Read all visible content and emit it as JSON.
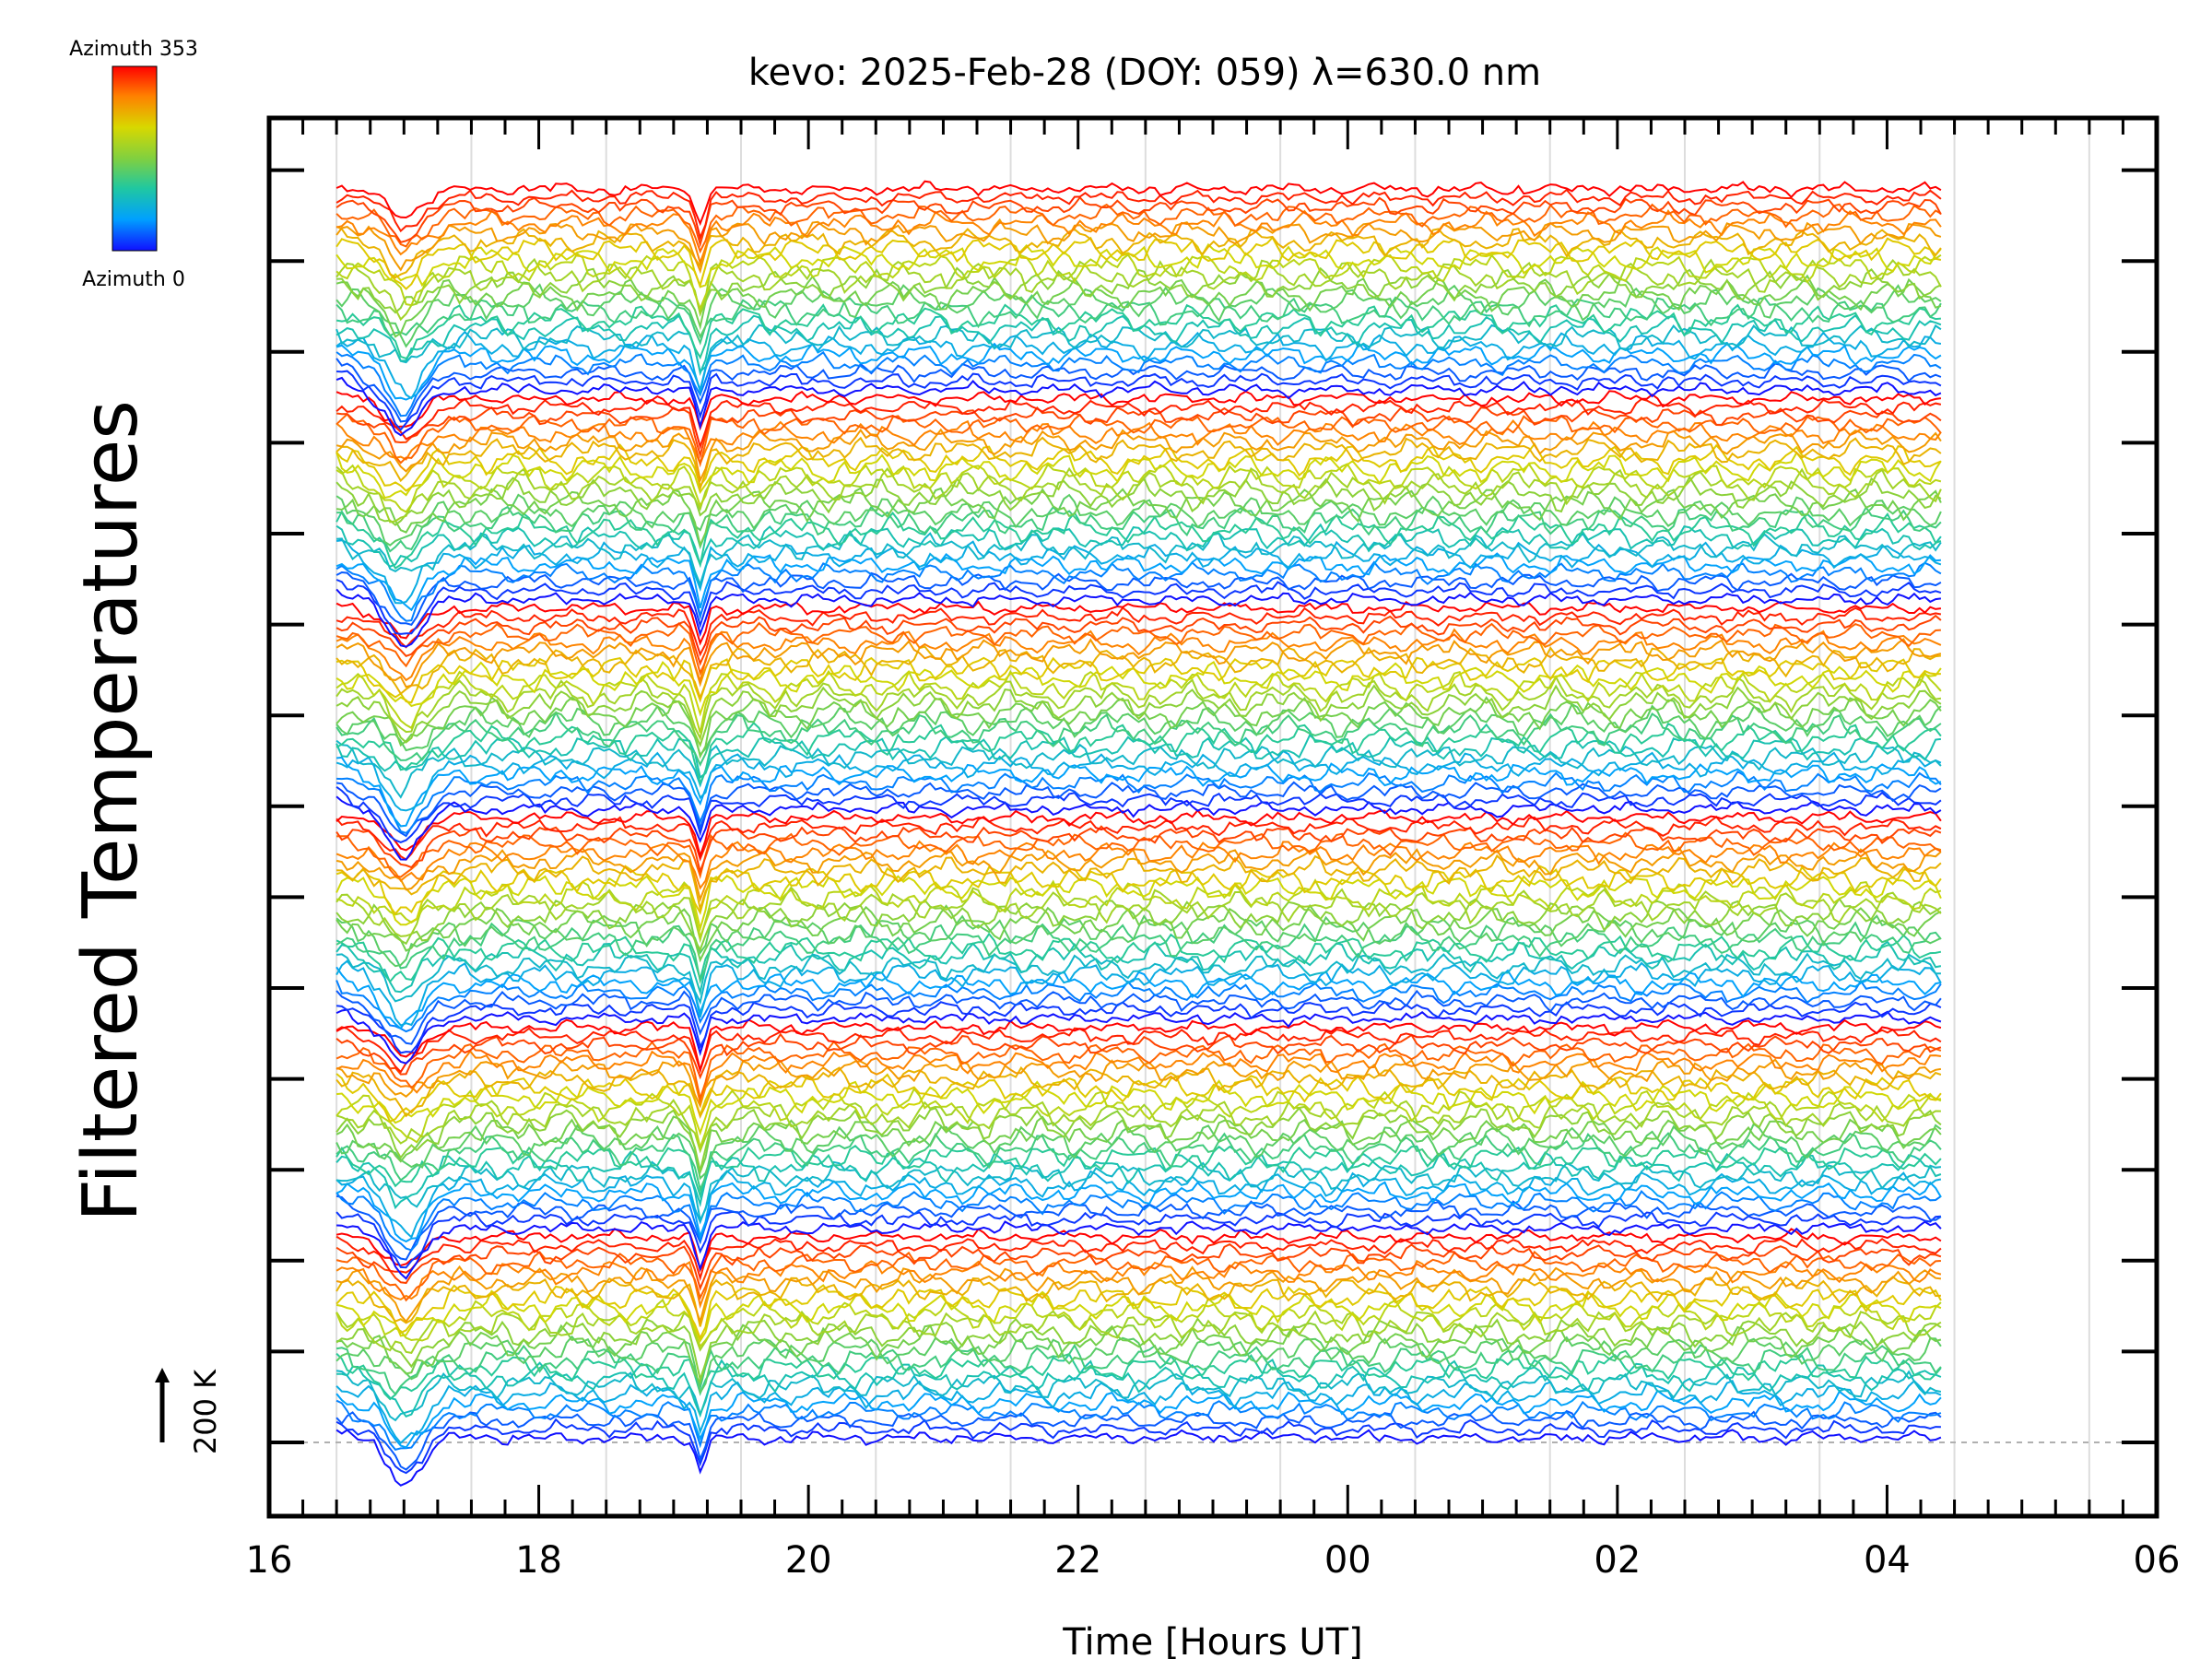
{
  "chart_data": {
    "type": "line",
    "title": "kevo: 2025-Feb-28 (DOY: 059) λ=630.0 nm",
    "xlabel": "Time [Hours UT]",
    "ylabel": "Filtered Temperatures",
    "x_range_hours_ut": [
      16,
      30
    ],
    "x_tick_labels": [
      "16",
      "18",
      "20",
      "22",
      "00",
      "02",
      "04",
      "06"
    ],
    "data_time_range_hours_ut": [
      16.5,
      28.4
    ],
    "series_count": 144,
    "series_offset_description": "each trace is vertically offset, ordered by azimuth",
    "colorbar": {
      "top_label": "Azimuth 353",
      "bottom_label": "Azimuth 0",
      "min": 0,
      "max": 353,
      "colormap": [
        "#1010ff",
        "#00a0ff",
        "#20c8a0",
        "#80d040",
        "#d8d800",
        "#ff8000",
        "#ff0000"
      ]
    },
    "scale_bar": {
      "label": "200 K",
      "value_k": 200
    },
    "grid": true,
    "features": [
      {
        "time_hours_ut": 17.0,
        "description": "dip on all traces"
      },
      {
        "time_hours_ut": 19.2,
        "description": "sharp dip on all traces"
      }
    ]
  }
}
